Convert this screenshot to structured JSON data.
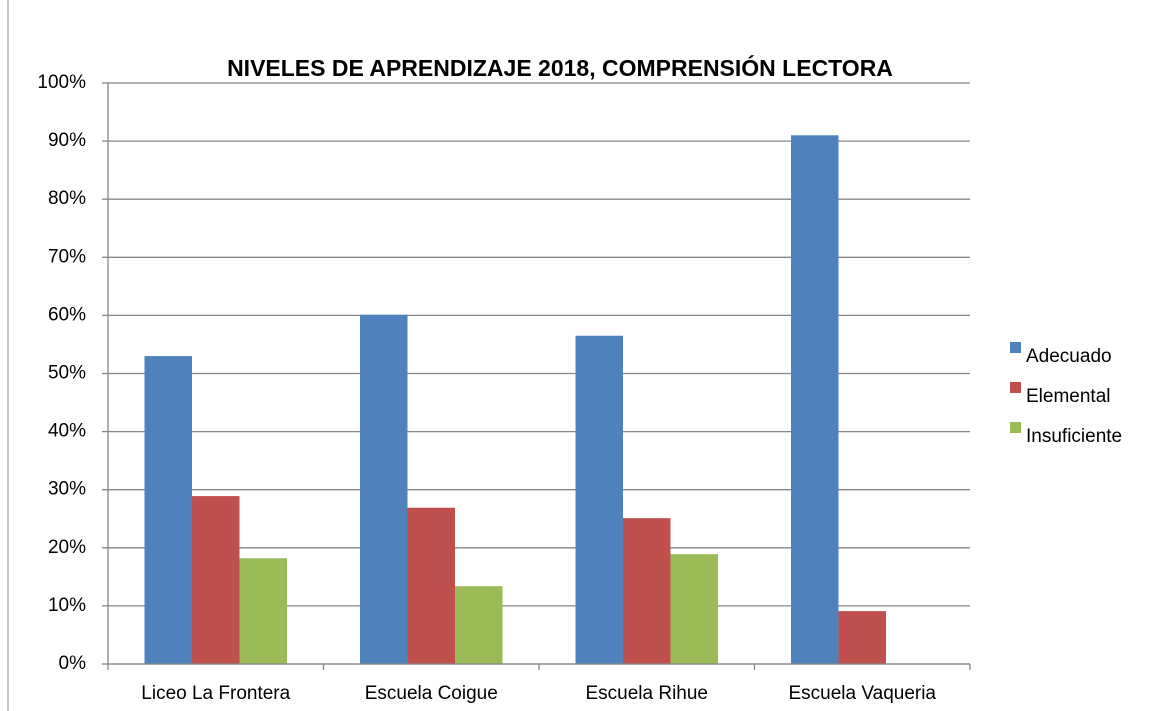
{
  "chart_data": {
    "type": "bar",
    "title": "NIVELES DE APRENDIZAJE 2018, COMPRENSIÓN LECTORA",
    "categories": [
      "Liceo La Frontera",
      "Escuela Coigue",
      "Escuela Rihue",
      "Escuela Vaqueria"
    ],
    "series": [
      {
        "name": "Adecuado",
        "color": "#4f81bd",
        "values": [
          53.0,
          60.1,
          56.5,
          91.0
        ]
      },
      {
        "name": "Elemental",
        "color": "#c0504d",
        "values": [
          28.9,
          26.9,
          25.1,
          9.1
        ]
      },
      {
        "name": "Insuficiente",
        "color": "#9bbb59",
        "values": [
          18.2,
          13.4,
          18.9,
          0
        ]
      }
    ],
    "ylim": [
      0,
      100
    ],
    "yticks": [
      {
        "value": 0,
        "label": "0%"
      },
      {
        "value": 10,
        "label": "10%"
      },
      {
        "value": 20,
        "label": "20%"
      },
      {
        "value": 30,
        "label": "30%"
      },
      {
        "value": 40,
        "label": "40%"
      },
      {
        "value": 50,
        "label": "50%"
      },
      {
        "value": 60,
        "label": "60%"
      },
      {
        "value": 70,
        "label": "70%"
      },
      {
        "value": 80,
        "label": "80%"
      },
      {
        "value": 90,
        "label": "90%"
      },
      {
        "value": 100,
        "label": "100%"
      }
    ],
    "grid": true,
    "legend": "right"
  }
}
